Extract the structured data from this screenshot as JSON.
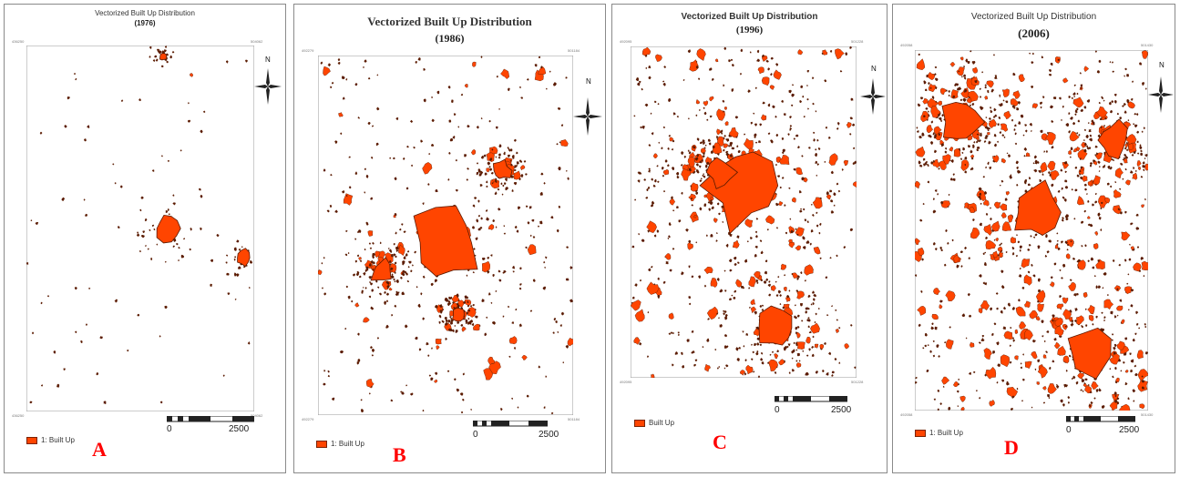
{
  "panels": {
    "a": {
      "title": "Vectorized Built Up Distribution",
      "year": "(1976)",
      "letter": "A",
      "legend": "1: Built Up",
      "coord_top_left": "436250",
      "coord_top_right": "504062",
      "coord_bottom_left": "436250",
      "coord_bottom_right": "504062",
      "scale_zero": "0",
      "scale_max": "2500",
      "north": "N"
    },
    "b": {
      "title": "Vectorized Built Up Distribution",
      "year": "(1986)",
      "letter": "B",
      "legend": "1: Built Up",
      "coord_top_left": "492279",
      "coord_top_right": "501184",
      "coord_bottom_left": "492279",
      "coord_bottom_right": "501184",
      "scale_zero": "0",
      "scale_max": "2500",
      "north": "N"
    },
    "c": {
      "title": "Vectorized Built Up Distribution",
      "year": "(1996)",
      "letter": "C",
      "legend": "Built Up",
      "coord_top_left": "492095",
      "coord_top_right": "501228",
      "coord_bottom_left": "492095",
      "coord_bottom_right": "501228",
      "scale_zero": "0",
      "scale_max": "2500",
      "north": "N"
    },
    "d": {
      "title": "Vectorized Built Up Distribution",
      "year": "(2006)",
      "letter": "D",
      "legend": "1: Built Up",
      "coord_top_left": "492058",
      "coord_top_right": "501430",
      "coord_bottom_left": "492058",
      "coord_bottom_right": "501430",
      "scale_zero": "0",
      "scale_max": "2500",
      "north": "N"
    }
  },
  "colors": {
    "built_up": "#ff4500",
    "built_up_outline": "#5a1a00",
    "frame": "#8a8a8a",
    "letter": "#ff0000"
  },
  "map_features": {
    "a": {
      "density": 0.08,
      "blobs": [
        [
          0.62,
          0.5,
          0.06
        ],
        [
          0.95,
          0.58,
          0.04
        ],
        [
          0.6,
          0.03,
          0.02
        ]
      ]
    },
    "b": {
      "density": 0.45,
      "blobs": [
        [
          0.5,
          0.52,
          0.16
        ],
        [
          0.25,
          0.6,
          0.05
        ],
        [
          0.72,
          0.32,
          0.04
        ],
        [
          0.55,
          0.72,
          0.03
        ]
      ]
    },
    "c": {
      "density": 0.6,
      "blobs": [
        [
          0.5,
          0.42,
          0.19
        ],
        [
          0.4,
          0.38,
          0.07
        ],
        [
          0.65,
          0.85,
          0.1
        ]
      ]
    },
    "d": {
      "density": 0.85,
      "blobs": [
        [
          0.52,
          0.45,
          0.12
        ],
        [
          0.2,
          0.2,
          0.1
        ],
        [
          0.75,
          0.85,
          0.12
        ],
        [
          0.85,
          0.25,
          0.08
        ]
      ]
    }
  }
}
